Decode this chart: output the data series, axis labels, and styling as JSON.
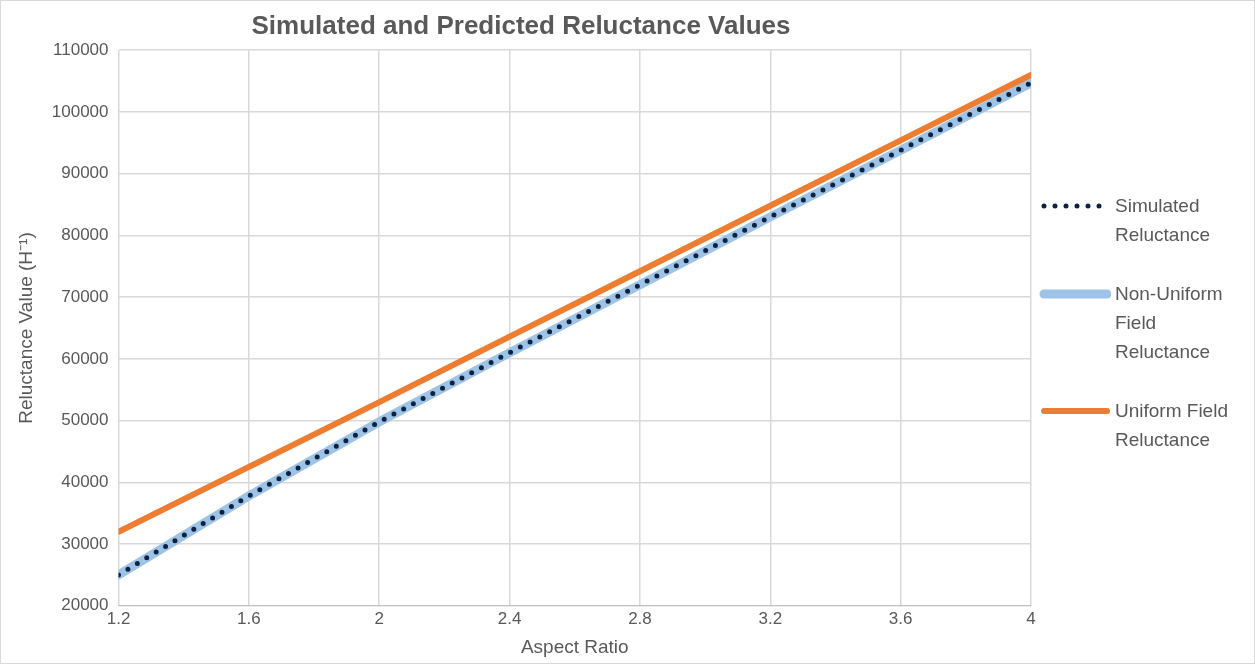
{
  "chart_data": {
    "type": "line",
    "title": "Simulated and Predicted Reluctance Values",
    "xlabel": "Aspect Ratio",
    "ylabel": "Reluctance Value (H⁻¹)",
    "x": [
      1.2,
      1.6,
      2,
      2.4,
      2.8,
      3.2,
      3.6,
      4
    ],
    "series": [
      {
        "name": "Simulated Reluctance",
        "color": "#0d2240",
        "line_style": "dotted",
        "values": [
          25000,
          37800,
          49800,
          61000,
          72000,
          83000,
          93800,
          104700
        ]
      },
      {
        "name": "Non-Uniform Field Reluctance",
        "color": "#9dc3e6",
        "line_style": "solid",
        "values": [
          25000,
          37800,
          49800,
          61000,
          72000,
          83000,
          93800,
          104700
        ]
      },
      {
        "name": "Uniform Field Reluctance",
        "color": "#ed7d31",
        "line_style": "solid",
        "values": [
          32000,
          42500,
          53000,
          63600,
          74200,
          84800,
          95400,
          106000
        ]
      }
    ],
    "xlim": [
      1.2,
      4
    ],
    "xticks": [
      1.2,
      1.6,
      2,
      2.4,
      2.8,
      3.2,
      3.6,
      4
    ],
    "ylim": [
      20000,
      110000
    ],
    "yticks": [
      20000,
      30000,
      40000,
      50000,
      60000,
      70000,
      80000,
      90000,
      100000,
      110000
    ],
    "grid": true,
    "legend": "right",
    "marker": "none"
  }
}
